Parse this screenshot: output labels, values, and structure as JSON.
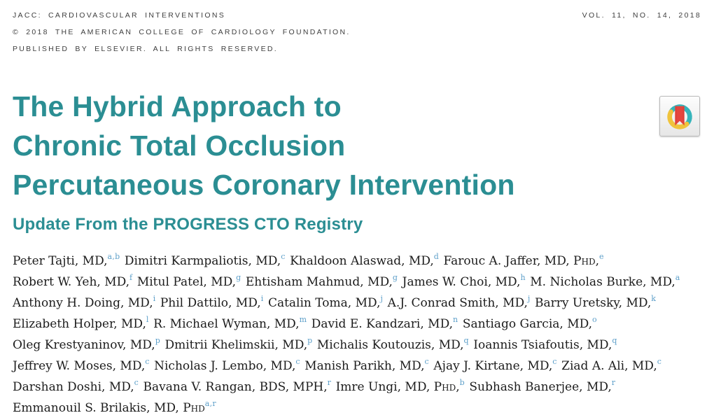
{
  "journal": {
    "name": "JACC: CARDIOVASCULAR INTERVENTIONS",
    "copyright": "© 2018 THE AMERICAN COLLEGE OF CARDIOLOGY FOUNDATION.",
    "rights": "PUBLISHED BY ELSEVIER. ALL RIGHTS RESERVED.",
    "volume": "VOL. 11, NO. 14, 2018"
  },
  "article": {
    "title_lines": [
      "The Hybrid Approach to",
      "Chronic Total Occlusion",
      "Percutaneous Coronary Intervention"
    ],
    "subtitle": "Update From the PROGRESS CTO Registry"
  },
  "authors": {
    "lines": [
      [
        {
          "name": "Peter Tajti, MD,",
          "sup": "a,b"
        },
        {
          "name": "Dimitri Karmpaliotis, MD,",
          "sup": "c"
        },
        {
          "name": "Khaldoon Alaswad, MD,",
          "sup": "d"
        },
        {
          "name": "Farouc A. Jaffer, MD, PhD,",
          "sup": "e"
        }
      ],
      [
        {
          "name": "Robert W. Yeh, MD,",
          "sup": "f"
        },
        {
          "name": "Mitul Patel, MD,",
          "sup": "g"
        },
        {
          "name": "Ehtisham Mahmud, MD,",
          "sup": "g"
        },
        {
          "name": "James W. Choi, MD,",
          "sup": "h"
        },
        {
          "name": "M. Nicholas Burke, MD,",
          "sup": "a"
        }
      ],
      [
        {
          "name": "Anthony H. Doing, MD,",
          "sup": "i"
        },
        {
          "name": "Phil Dattilo, MD,",
          "sup": "i"
        },
        {
          "name": "Catalin Toma, MD,",
          "sup": "j"
        },
        {
          "name": "A.J. Conrad Smith, MD,",
          "sup": "j"
        },
        {
          "name": "Barry Uretsky, MD,",
          "sup": "k"
        }
      ],
      [
        {
          "name": "Elizabeth Holper, MD,",
          "sup": "l"
        },
        {
          "name": "R. Michael Wyman, MD,",
          "sup": "m"
        },
        {
          "name": "David E. Kandzari, MD,",
          "sup": "n"
        },
        {
          "name": "Santiago Garcia, MD,",
          "sup": "o"
        }
      ],
      [
        {
          "name": "Oleg Krestyaninov, MD,",
          "sup": "p"
        },
        {
          "name": "Dmitrii Khelimskii, MD,",
          "sup": "p"
        },
        {
          "name": "Michalis Koutouzis, MD,",
          "sup": "q"
        },
        {
          "name": "Ioannis Tsiafoutis, MD,",
          "sup": "q"
        }
      ],
      [
        {
          "name": "Jeffrey W. Moses, MD,",
          "sup": "c"
        },
        {
          "name": "Nicholas J. Lembo, MD,",
          "sup": "c"
        },
        {
          "name": "Manish Parikh, MD,",
          "sup": "c"
        },
        {
          "name": "Ajay J. Kirtane, MD,",
          "sup": "c"
        },
        {
          "name": "Ziad A. Ali, MD,",
          "sup": "c"
        }
      ],
      [
        {
          "name": "Darshan Doshi, MD,",
          "sup": "c"
        },
        {
          "name": "Bavana V. Rangan, BDS, MPH,",
          "sup": "r"
        },
        {
          "name": "Imre Ungi, MD, PhD,",
          "sup": "b"
        },
        {
          "name": "Subhash Banerjee, MD,",
          "sup": "r"
        }
      ],
      [
        {
          "name": "Emmanouil S. Brilakis, MD, PhD",
          "sup": "a,r"
        }
      ]
    ]
  },
  "icons": {
    "bookmark_badge": "journal-club-bookmark-icon"
  },
  "colors": {
    "title_teal": "#2b8e93",
    "superscript_blue": "#5d9fc9",
    "ring_teal": "#35b4bb",
    "ring_yellow": "#f0c33c",
    "bookmark_red": "#e5453e"
  }
}
